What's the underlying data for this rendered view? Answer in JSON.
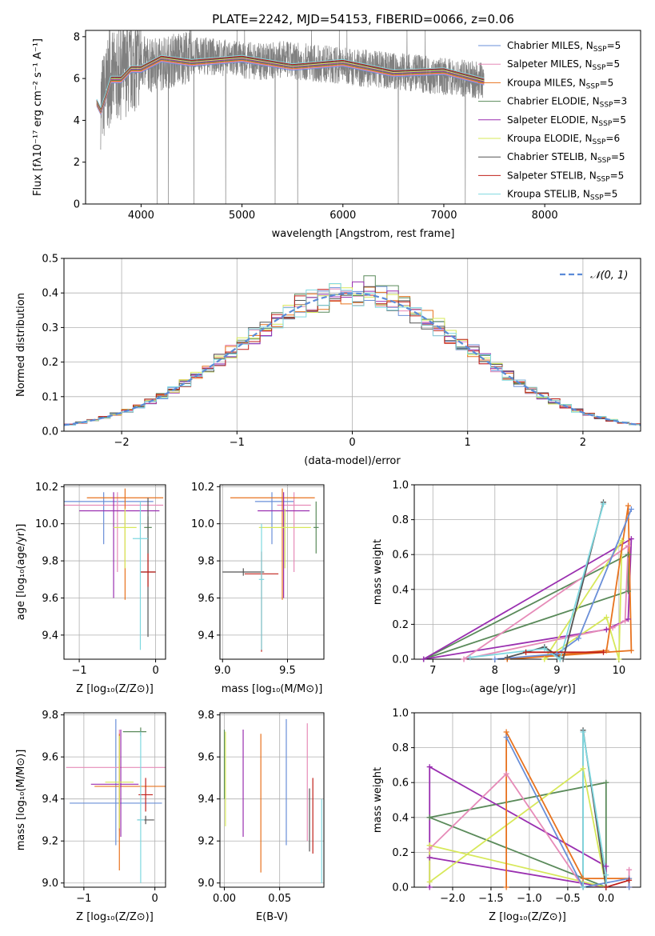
{
  "colors": {
    "chabrier_miles": "#6a8fd8",
    "salpeter_miles": "#e68bb8",
    "kroupa_miles": "#e8731f",
    "chabrier_elodie": "#5a8a5a",
    "salpeter_elodie": "#9a2fb0",
    "kroupa_elodie": "#d7e85a",
    "chabrier_stelib": "#555555",
    "salpeter_stelib": "#c0201a",
    "kroupa_stelib": "#7fd8e0",
    "data": "#808080",
    "normal": "#5b8bd8",
    "grid": "#b0b0b0"
  },
  "chart_data": [
    {
      "id": "spectrum",
      "type": "line",
      "title": "PLATE=2242, MJD=54153, FIBERID=0066, z=0.06",
      "xlabel": "wavelength [Angstrom, rest frame]",
      "ylabel": "Flux [fλ10⁻¹⁷ erg cm⁻² s⁻¹ A⁻¹]",
      "xlim": [
        3450,
        8950
      ],
      "ylim": [
        0,
        8.3
      ],
      "xticks": [
        4000,
        5000,
        6000,
        7000,
        8000
      ],
      "yticks": [
        0,
        2,
        4,
        6,
        8
      ],
      "grid": false,
      "legend": "upper right",
      "data_series": {
        "name": "",
        "x": [
          3600,
          3650,
          3700,
          3800,
          3900,
          4000,
          4100,
          4200,
          4400,
          4600,
          4800,
          5000,
          5200,
          5400,
          5600,
          5800,
          6000,
          6200,
          6400,
          6600,
          6800,
          7000,
          7200,
          7400
        ],
        "y": [
          4.8,
          5.4,
          6.0,
          6.2,
          6.5,
          6.8,
          6.6,
          6.7,
          7.0,
          7.1,
          7.0,
          6.9,
          6.8,
          6.9,
          6.8,
          6.7,
          6.6,
          6.5,
          6.4,
          6.3,
          6.2,
          6.1,
          6.0,
          5.9
        ]
      },
      "models": {
        "x": [
          3560,
          3600,
          3650,
          3700,
          3800,
          3900,
          4000,
          4200,
          4500,
          5000,
          5500,
          6000,
          6500,
          7000,
          7400
        ],
        "y": [
          5.0,
          4.3,
          5.3,
          5.8,
          6.1,
          6.3,
          6.6,
          6.8,
          6.9,
          6.8,
          6.7,
          6.6,
          6.4,
          6.2,
          6.0
        ]
      },
      "legend_entries": [
        {
          "label": "Chabrier MILES, N",
          "sub": "SSP",
          "tail": "=5",
          "color_key": "chabrier_miles"
        },
        {
          "label": "Salpeter MILES, N",
          "sub": "SSP",
          "tail": "=5",
          "color_key": "salpeter_miles"
        },
        {
          "label": "Kroupa MILES, N",
          "sub": "SSP",
          "tail": "=5",
          "color_key": "kroupa_miles"
        },
        {
          "label": "Chabrier ELODIE, N",
          "sub": "SSP",
          "tail": "=3",
          "color_key": "chabrier_elodie"
        },
        {
          "label": "Salpeter ELODIE, N",
          "sub": "SSP",
          "tail": "=5",
          "color_key": "salpeter_elodie"
        },
        {
          "label": "Kroupa ELODIE, N",
          "sub": "SSP",
          "tail": "=6",
          "color_key": "kroupa_elodie"
        },
        {
          "label": "Chabrier STELIB, N",
          "sub": "SSP",
          "tail": "=5",
          "color_key": "chabrier_stelib"
        },
        {
          "label": "Salpeter STELIB, N",
          "sub": "SSP",
          "tail": "=5",
          "color_key": "salpeter_stelib"
        },
        {
          "label": "Kroupa STELIB, N",
          "sub": "SSP",
          "tail": "=5",
          "color_key": "kroupa_stelib"
        }
      ]
    },
    {
      "id": "residuals",
      "type": "line",
      "xlabel": "(data-model)/error",
      "ylabel": "Normed distribution",
      "xlim": [
        -2.5,
        2.5
      ],
      "ylim": [
        0,
        0.5
      ],
      "xticks": [
        -2,
        -1,
        0,
        1,
        2
      ],
      "yticks": [
        0.0,
        0.1,
        0.2,
        0.3,
        0.4,
        0.5
      ],
      "grid": true,
      "legend": "upper right",
      "legend_label": "𝒩(0, 1)",
      "bin_width": 0.1
    },
    {
      "id": "age_vs_Z",
      "type": "scatter",
      "xlabel": "Z [log₁₀(Z/Z⊙)]",
      "ylabel": "age  [log₁₀(age/yr)]",
      "xlim": [
        -1.2,
        0.13
      ],
      "ylim": [
        9.27,
        10.21
      ],
      "xticks": [
        -1,
        0
      ],
      "yticks": [
        9.4,
        9.6,
        9.8,
        10.0,
        10.2
      ],
      "grid": true,
      "points": [
        {
          "c": "chabrier_miles",
          "x": -0.68,
          "xerr": [
            0.55,
            0.65
          ],
          "y": 10.12,
          "yerr": [
            0.23,
            0.05
          ]
        },
        {
          "c": "salpeter_miles",
          "x": -0.5,
          "xerr": [
            0.8,
            0.6
          ],
          "y": 10.1,
          "yerr": [
            0.36,
            0.07
          ]
        },
        {
          "c": "kroupa_miles",
          "x": -0.4,
          "xerr": [
            0.5,
            0.5
          ],
          "y": 10.14,
          "yerr": [
            0.55,
            0.05
          ]
        },
        {
          "c": "chabrier_elodie",
          "x": -0.1,
          "xerr": [
            0.05,
            0.05
          ],
          "y": 9.98,
          "yerr": [
            0.14,
            0.06
          ]
        },
        {
          "c": "salpeter_elodie",
          "x": -0.55,
          "xerr": [
            0.45,
            0.6
          ],
          "y": 10.07,
          "yerr": [
            0.47,
            0.1
          ]
        },
        {
          "c": "kroupa_elodie",
          "x": -0.4,
          "xerr": [
            0.15,
            0.15
          ],
          "y": 9.98,
          "yerr": [
            0.22,
            0.1
          ]
        },
        {
          "c": "chabrier_stelib",
          "x": -0.1,
          "xerr": [
            0.1,
            0.1
          ],
          "y": 9.74,
          "yerr": [
            0.35,
            0.4
          ]
        },
        {
          "c": "salpeter_stelib",
          "x": -0.1,
          "xerr": [
            0.1,
            0.1
          ],
          "y": 9.74,
          "yerr": [
            0.08,
            0.1
          ]
        },
        {
          "c": "kroupa_stelib",
          "x": -0.2,
          "xerr": [
            0.1,
            0.1
          ],
          "y": 9.92,
          "yerr": [
            0.6,
            0.2
          ]
        }
      ]
    },
    {
      "id": "age_vs_mass",
      "type": "scatter",
      "xlabel": "mass [log₁₀(M/M⊙)]",
      "ylabel": "",
      "xlim": [
        8.98,
        9.78
      ],
      "ylim": [
        9.27,
        10.21
      ],
      "xticks": [
        9.0,
        9.5
      ],
      "yticks": [
        9.4,
        9.6,
        9.8,
        10.0,
        10.2
      ],
      "grid": true,
      "points": [
        {
          "c": "chabrier_miles",
          "x": 9.38,
          "xerr": [
            0.13,
            0.17
          ],
          "y": 10.12,
          "yerr": [
            0.23,
            0.05
          ]
        },
        {
          "c": "salpeter_miles",
          "x": 9.55,
          "xerr": [
            0.13,
            0.13
          ],
          "y": 10.1,
          "yerr": [
            0.36,
            0.07
          ]
        },
        {
          "c": "kroupa_miles",
          "x": 9.46,
          "xerr": [
            0.4,
            0.25
          ],
          "y": 10.14,
          "yerr": [
            0.55,
            0.05
          ]
        },
        {
          "c": "chabrier_elodie",
          "x": 9.72,
          "xerr": [
            0.02,
            0.02
          ],
          "y": 9.98,
          "yerr": [
            0.14,
            0.14
          ]
        },
        {
          "c": "salpeter_elodie",
          "x": 9.47,
          "xerr": [
            0.2,
            0.2
          ],
          "y": 10.07,
          "yerr": [
            0.47,
            0.1
          ]
        },
        {
          "c": "kroupa_elodie",
          "x": 9.48,
          "xerr": [
            0.2,
            0.2
          ],
          "y": 9.98,
          "yerr": [
            0.22,
            0.1
          ]
        },
        {
          "c": "chabrier_stelib",
          "x": 9.16,
          "xerr": [
            0.16,
            0.16
          ],
          "y": 9.74,
          "yerr": [
            0.02,
            0.02
          ]
        },
        {
          "c": "salpeter_stelib",
          "x": 9.3,
          "xerr": [
            0.13,
            0.13
          ],
          "y": 9.73,
          "yerr": [
            0.42,
            0.12
          ]
        },
        {
          "c": "kroupa_stelib",
          "x": 9.3,
          "xerr": [
            0.02,
            0.02
          ],
          "y": 9.7,
          "yerr": [
            0.38,
            0.3
          ]
        }
      ]
    },
    {
      "id": "weight_vs_age",
      "type": "line",
      "xlabel": "age  [log₁₀(age/yr)]",
      "ylabel": "mass weight",
      "xlim": [
        6.7,
        10.35
      ],
      "ylim": [
        0,
        1.0
      ],
      "xticks": [
        7,
        8,
        9,
        10
      ],
      "yticks": [
        0.0,
        0.2,
        0.4,
        0.6,
        0.8,
        1.0
      ],
      "grid": true,
      "series": [
        {
          "c": "chabrier_elodie",
          "x": [
            6.85,
            10.15,
            10.15,
            6.85
          ],
          "y": [
            0.0,
            0.6,
            0.39,
            0.0
          ]
        },
        {
          "c": "salpeter_elodie",
          "x": [
            6.85,
            9.8,
            10.15,
            10.2,
            6.85
          ],
          "y": [
            0.0,
            0.17,
            0.23,
            0.69,
            0.0
          ]
        },
        {
          "c": "kroupa_elodie",
          "x": [
            8.8,
            9.8,
            10.0,
            10.05,
            8.8
          ],
          "y": [
            0.0,
            0.24,
            0.0,
            0.68,
            0.0
          ]
        },
        {
          "c": "salpeter_miles",
          "x": [
            7.5,
            9.9,
            10.1,
            10.15,
            7.5
          ],
          "y": [
            0.0,
            0.18,
            0.22,
            0.65,
            0.0
          ]
        },
        {
          "c": "kroupa_miles",
          "x": [
            8.2,
            9.8,
            10.15,
            10.2,
            8.2
          ],
          "y": [
            0.0,
            0.05,
            0.88,
            0.05,
            0.0
          ]
        },
        {
          "c": "chabrier_miles",
          "x": [
            8.0,
            9.0,
            9.35,
            10.2
          ],
          "y": [
            0.0,
            0.03,
            0.12,
            0.86
          ]
        },
        {
          "c": "chabrier_stelib",
          "x": [
            8.2,
            8.8,
            9.1,
            9.75
          ],
          "y": [
            0.01,
            0.07,
            0.0,
            0.9
          ]
        },
        {
          "c": "kroupa_stelib",
          "x": [
            7.6,
            8.8,
            9.05,
            9.75
          ],
          "y": [
            0.01,
            0.06,
            0.0,
            0.89
          ]
        },
        {
          "c": "salpeter_stelib",
          "x": [
            8.5,
            9.75
          ],
          "y": [
            0.04,
            0.04
          ]
        }
      ]
    },
    {
      "id": "mass_vs_Z",
      "type": "scatter",
      "xlabel": "Z [log₁₀(Z/Z⊙)]",
      "ylabel": "mass [log₁₀(M/M⊙)]",
      "xlim": [
        -1.28,
        0.15
      ],
      "ylim": [
        8.98,
        9.81
      ],
      "xticks": [
        -1,
        0
      ],
      "yticks": [
        9.0,
        9.2,
        9.4,
        9.6,
        9.8
      ],
      "grid": true,
      "points": [
        {
          "c": "chabrier_miles",
          "x": -0.55,
          "xerr": [
            0.65,
            0.65
          ],
          "y": 9.38,
          "yerr": [
            0.2,
            0.4
          ]
        },
        {
          "c": "salpeter_miles",
          "x": -0.5,
          "xerr": [
            0.75,
            0.7
          ],
          "y": 9.55,
          "yerr": [
            0.3,
            0.18
          ]
        },
        {
          "c": "kroupa_miles",
          "x": -0.5,
          "xerr": [
            0.35,
            0.65
          ],
          "y": 9.46,
          "yerr": [
            0.4,
            0.25
          ]
        },
        {
          "c": "chabrier_elodie",
          "x": -0.2,
          "xerr": [
            0.25,
            0.08
          ],
          "y": 9.72,
          "yerr": [
            0.02,
            0.02
          ]
        },
        {
          "c": "salpeter_elodie",
          "x": -0.48,
          "xerr": [
            0.42,
            0.25
          ],
          "y": 9.47,
          "yerr": [
            0.25,
            0.26
          ]
        },
        {
          "c": "kroupa_elodie",
          "x": -0.5,
          "xerr": [
            0.2,
            0.2
          ],
          "y": 9.48,
          "yerr": [
            0.22,
            0.22
          ]
        },
        {
          "c": "chabrier_stelib",
          "x": -0.13,
          "xerr": [
            0.12,
            0.12
          ],
          "y": 9.3,
          "yerr": [
            0.02,
            0.02
          ]
        },
        {
          "c": "salpeter_stelib",
          "x": -0.13,
          "xerr": [
            0.1,
            0.1
          ],
          "y": 9.42,
          "yerr": [
            0.08,
            0.08
          ]
        },
        {
          "c": "kroupa_stelib",
          "x": -0.2,
          "xerr": [
            0.05,
            0.05
          ],
          "y": 9.3,
          "yerr": [
            0.3,
            0.42
          ]
        }
      ]
    },
    {
      "id": "mass_vs_ebv",
      "type": "scatter",
      "xlabel": "E(B-V)",
      "ylabel": "",
      "xlim": [
        -0.004,
        0.09
      ],
      "ylim": [
        8.98,
        9.81
      ],
      "xticks": [
        0.0,
        0.05
      ],
      "xticklabels": [
        "0.00",
        "0.05"
      ],
      "yticks": [
        9.0,
        9.2,
        9.4,
        9.6,
        9.8
      ],
      "grid": true,
      "points": [
        {
          "c": "chabrier_miles",
          "x": 0.056,
          "xerr": [
            0,
            0
          ],
          "y": 9.48,
          "yerr": [
            0.3,
            0.3
          ]
        },
        {
          "c": "salpeter_miles",
          "x": 0.075,
          "xerr": [
            0,
            0
          ],
          "y": 9.48,
          "yerr": [
            0.28,
            0.28
          ]
        },
        {
          "c": "kroupa_miles",
          "x": 0.033,
          "xerr": [
            0,
            0
          ],
          "y": 9.38,
          "yerr": [
            0.33,
            0.33
          ]
        },
        {
          "c": "chabrier_elodie",
          "x": 0.0,
          "xerr": [
            0,
            0
          ],
          "y": 9.55,
          "yerr": [
            0.15,
            0.18
          ]
        },
        {
          "c": "salpeter_elodie",
          "x": 0.017,
          "xerr": [
            0,
            0
          ],
          "y": 9.48,
          "yerr": [
            0.26,
            0.25
          ]
        },
        {
          "c": "kroupa_elodie",
          "x": 0.001,
          "xerr": [
            0,
            0
          ],
          "y": 9.5,
          "yerr": [
            0.23,
            0.22
          ]
        },
        {
          "c": "chabrier_stelib",
          "x": 0.077,
          "xerr": [
            0,
            0
          ],
          "y": 9.3,
          "yerr": [
            0.15,
            0.15
          ]
        },
        {
          "c": "salpeter_stelib",
          "x": 0.08,
          "xerr": [
            0,
            0
          ],
          "y": 9.32,
          "yerr": [
            0.18,
            0.18
          ]
        },
        {
          "c": "kroupa_stelib",
          "x": 0.088,
          "xerr": [
            0,
            0
          ],
          "y": 9.2,
          "yerr": [
            0.2,
            0.2
          ]
        }
      ]
    },
    {
      "id": "weight_vs_Z",
      "type": "line",
      "xlabel": "Z [log₁₀(Z/Z⊙)]",
      "ylabel": "mass weight",
      "xlim": [
        -2.5,
        0.45
      ],
      "ylim": [
        0,
        1.0
      ],
      "xticks": [
        -2.0,
        -1.5,
        -1.0,
        -0.5,
        0.0
      ],
      "yticks": [
        0.0,
        0.2,
        0.4,
        0.6,
        0.8,
        1.0
      ],
      "grid": true,
      "series": [
        {
          "c": "chabrier_elodie",
          "x": [
            -2.3,
            0.0,
            0.0,
            -2.3
          ],
          "y": [
            0.4,
            0.0,
            0.6,
            0.4
          ]
        },
        {
          "c": "salpeter_elodie",
          "x": [
            -2.3,
            -2.3,
            0.0,
            0.0,
            -2.3
          ],
          "y": [
            0.0,
            0.69,
            0.12,
            0.0,
            0.17
          ]
        },
        {
          "c": "kroupa_elodie",
          "x": [
            -2.3,
            -2.3,
            -0.3,
            0.0,
            -2.3
          ],
          "y": [
            0.24,
            0.03,
            0.68,
            0.0,
            0.24
          ]
        },
        {
          "c": "salpeter_miles",
          "x": [
            -2.3,
            -1.3,
            -0.3,
            0.3,
            0.3
          ],
          "y": [
            0.22,
            0.65,
            0.0,
            0.0,
            0.1
          ]
        },
        {
          "c": "kroupa_miles",
          "x": [
            -1.3,
            -1.3,
            -0.3,
            0.3,
            0.3
          ],
          "y": [
            0.0,
            0.89,
            0.05,
            0.05,
            0.0
          ]
        },
        {
          "c": "chabrier_miles",
          "x": [
            -1.3,
            -0.3,
            0.3,
            0.3
          ],
          "y": [
            0.86,
            0.0,
            0.05,
            0.0
          ]
        },
        {
          "c": "chabrier_stelib",
          "x": [
            -0.3,
            -0.3,
            0.0
          ],
          "y": [
            0.0,
            0.9,
            0.0
          ]
        },
        {
          "c": "kroupa_stelib",
          "x": [
            -0.3,
            -0.3,
            0.0,
            0.0
          ],
          "y": [
            0.0,
            0.89,
            0.07,
            0.0
          ]
        },
        {
          "c": "salpeter_stelib",
          "x": [
            0.0,
            0.3
          ],
          "y": [
            0.0,
            0.04
          ]
        }
      ]
    }
  ]
}
